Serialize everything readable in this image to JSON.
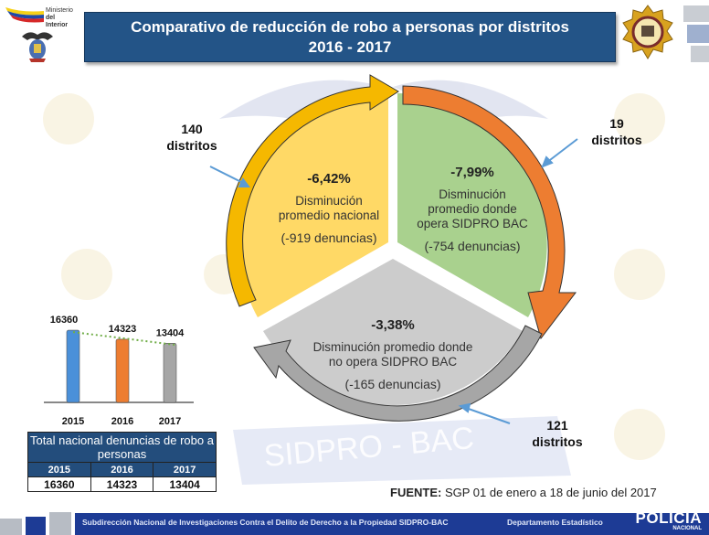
{
  "header": {
    "ministry_logo_line1": "Ministerio",
    "ministry_logo_line2": "del Interior",
    "title_line1": "Comparativo de reducción de robo a personas por distritos",
    "title_line2": "2016 - 2017"
  },
  "watermark": {
    "text": "SIDPRO - BAC"
  },
  "segments": [
    {
      "id": "nacional",
      "percent": "-6,42%",
      "description_line1": "Disminución",
      "description_line2": "promedio nacional",
      "denuncias": "(-919 denuncias)",
      "districts_number": "140",
      "districts_label": "distritos",
      "fill_color": "#ffd966",
      "arrow_color": "#f5b800"
    },
    {
      "id": "opera",
      "percent": "-7,99%",
      "description_line1": "Disminución",
      "description_line2": "promedio donde",
      "description_line3": "opera SIDPRO BAC",
      "denuncias": "(-754 denuncias)",
      "districts_number": "19",
      "districts_label": "distritos",
      "fill_color": "#a9d18e",
      "arrow_color": "#ed7d31"
    },
    {
      "id": "no_opera",
      "percent": "-3,38%",
      "description_line1": "Disminución promedio donde",
      "description_line2": "no opera SIDPRO BAC",
      "denuncias": "(-165 denuncias)",
      "districts_number": "121",
      "districts_label": "distritos",
      "fill_color": "#cccccc",
      "arrow_color": "#a6a6a6"
    }
  ],
  "chart_data": {
    "type": "bar",
    "title": "",
    "categories": [
      "2015",
      "2016",
      "2017"
    ],
    "values": [
      16360,
      14323,
      13404
    ],
    "colors": [
      "#4a90d9",
      "#ed7d31",
      "#a6a6a6"
    ],
    "trendline": "dotted linear",
    "trend_color": "#70ad47",
    "xlabel": "",
    "ylabel": "",
    "ylim": [
      0,
      17000
    ],
    "grid": false,
    "legend": "none"
  },
  "table": {
    "title": "Total nacional denuncias de robo a personas",
    "years": [
      "2015",
      "2016",
      "2017"
    ],
    "values": [
      "16360",
      "14323",
      "13404"
    ]
  },
  "source": {
    "label": "FUENTE:",
    "text": " SGP 01 de enero a 18 de junio del 2017"
  },
  "footer": {
    "org": "Subdirección Nacional  de Investigaciones Contra el Delito de Derecho a la Propiedad SIDPRO-BAC",
    "department": "Departamento Estadístico",
    "logo_main": "POLICÍA",
    "logo_sub": "NACIONAL"
  }
}
